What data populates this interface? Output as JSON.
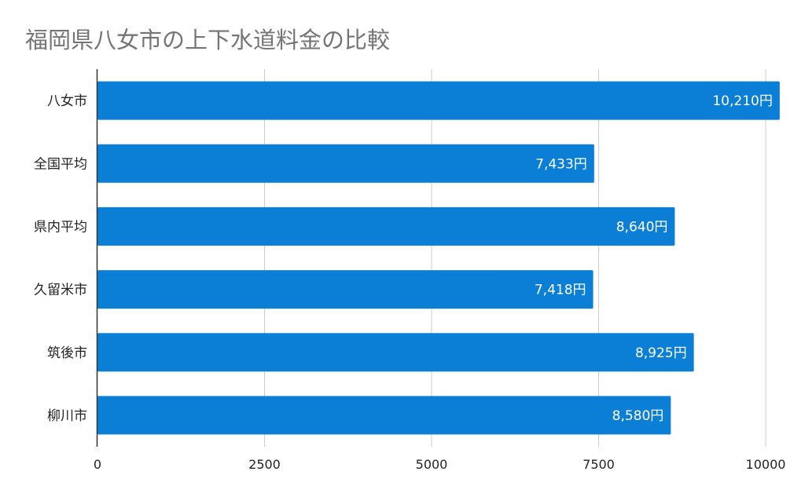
{
  "chart_data": {
    "type": "bar",
    "orientation": "horizontal",
    "title": "福岡県八女市の上下水道料金の比較",
    "categories": [
      "八女市",
      "全国平均",
      "県内平均",
      "久留米市",
      "筑後市",
      "柳川市"
    ],
    "values": [
      10210,
      7433,
      8640,
      7418,
      8925,
      8580
    ],
    "data_labels": [
      "10,210円",
      "7,433円",
      "8,640円",
      "7,418円",
      "8,925円",
      "8,580円"
    ],
    "xticks": [
      0,
      2500,
      5000,
      7500,
      10000
    ],
    "xtick_labels": [
      "0",
      "2500",
      "5000",
      "7500",
      "10000"
    ],
    "xlim": [
      0,
      10210
    ],
    "grid": true,
    "bar_color": "#0a7fd5",
    "grid_color": "#cccccc",
    "axis_color": "#333333"
  }
}
